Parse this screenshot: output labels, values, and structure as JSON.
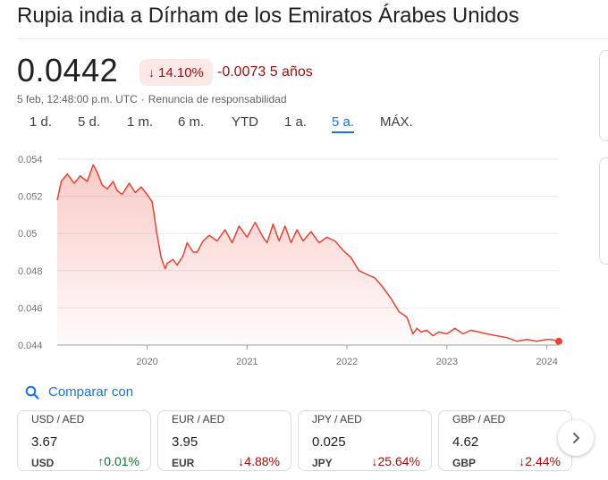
{
  "header": {
    "title": "Rupia india a Dírham de los Emiratos Árabes Unidos"
  },
  "quote": {
    "price": "0.0442",
    "pct_change": "14.10%",
    "abs_change": "-0.0073 5 años",
    "timestamp": "5 feb, 12:48:00 p.m. UTC",
    "disclaimer": "Renuncia de responsabilidad",
    "direction": "down"
  },
  "range_tabs": [
    {
      "label": "1 d.",
      "active": false
    },
    {
      "label": "5 d.",
      "active": false
    },
    {
      "label": "1 m.",
      "active": false
    },
    {
      "label": "6 m.",
      "active": false
    },
    {
      "label": "YTD",
      "active": false
    },
    {
      "label": "1 a.",
      "active": false
    },
    {
      "label": "5 a.",
      "active": true
    },
    {
      "label": "MÁX.",
      "active": false
    }
  ],
  "chart_data": {
    "type": "area",
    "y_ticks": [
      "0.054",
      "0.052",
      "0.05",
      "0.048",
      "0.046",
      "0.044"
    ],
    "x_ticks": [
      "2020",
      "2021",
      "2022",
      "2023",
      "2024"
    ],
    "ylim": [
      0.044,
      0.054
    ],
    "xlim": [
      2019.1,
      2024.12
    ],
    "grid": true,
    "line_color": "#ea4335",
    "x": [
      2019.1,
      2019.14,
      2019.2,
      2019.27,
      2019.33,
      2019.4,
      2019.46,
      2019.5,
      2019.55,
      2019.6,
      2019.66,
      2019.7,
      2019.75,
      2019.82,
      2019.88,
      2019.94,
      2020.0,
      2020.05,
      2020.1,
      2020.14,
      2020.18,
      2020.2,
      2020.26,
      2020.3,
      2020.36,
      2020.4,
      2020.46,
      2020.5,
      2020.56,
      2020.62,
      2020.7,
      2020.78,
      2020.85,
      2020.92,
      2021.0,
      2021.08,
      2021.16,
      2021.2,
      2021.26,
      2021.32,
      2021.38,
      2021.44,
      2021.5,
      2021.56,
      2021.64,
      2021.72,
      2021.8,
      2021.88,
      2021.96,
      2022.04,
      2022.12,
      2022.2,
      2022.28,
      2022.36,
      2022.44,
      2022.52,
      2022.6,
      2022.66,
      2022.7,
      2022.74,
      2022.8,
      2022.86,
      2022.92,
      2023.0,
      2023.08,
      2023.16,
      2023.24,
      2023.32,
      2023.4,
      2023.5,
      2023.6,
      2023.7,
      2023.8,
      2023.9,
      2024.0,
      2024.05,
      2024.12
    ],
    "y": [
      0.0518,
      0.0528,
      0.0532,
      0.0527,
      0.0531,
      0.0528,
      0.0537,
      0.0533,
      0.0526,
      0.0524,
      0.0528,
      0.0523,
      0.0521,
      0.0527,
      0.0522,
      0.0525,
      0.0521,
      0.0517,
      0.0499,
      0.0487,
      0.0481,
      0.0484,
      0.0486,
      0.0483,
      0.0488,
      0.0495,
      0.049,
      0.049,
      0.0496,
      0.0499,
      0.0496,
      0.0502,
      0.0495,
      0.0504,
      0.0498,
      0.0506,
      0.0498,
      0.0495,
      0.0505,
      0.0496,
      0.0504,
      0.0495,
      0.0502,
      0.0496,
      0.0501,
      0.0495,
      0.0498,
      0.0496,
      0.0491,
      0.0487,
      0.048,
      0.0478,
      0.0476,
      0.0471,
      0.0465,
      0.0458,
      0.0455,
      0.0446,
      0.0449,
      0.0447,
      0.0448,
      0.0445,
      0.0447,
      0.0446,
      0.0449,
      0.0446,
      0.0448,
      0.0447,
      0.0446,
      0.0445,
      0.0444,
      0.0442,
      0.0443,
      0.0442,
      0.0443,
      0.0443,
      0.0442
    ]
  },
  "compare": {
    "label": "Comparar con",
    "icon": "search-icon"
  },
  "cards": [
    {
      "pair": "USD / AED",
      "value": "3.67",
      "base": "USD",
      "change": "0.01%",
      "direction": "up"
    },
    {
      "pair": "EUR / AED",
      "value": "3.95",
      "base": "EUR",
      "change": "4.88%",
      "direction": "down"
    },
    {
      "pair": "JPY / AED",
      "value": "0.025",
      "base": "JPY",
      "change": "25.64%",
      "direction": "down"
    },
    {
      "pair": "GBP / AED",
      "value": "4.62",
      "base": "GBP",
      "change": "2.44%",
      "direction": "down"
    }
  ],
  "colors": {
    "accent": "#1a73e8",
    "negative": "#a50e0e",
    "positive": "#137333",
    "line": "#ea4335"
  }
}
